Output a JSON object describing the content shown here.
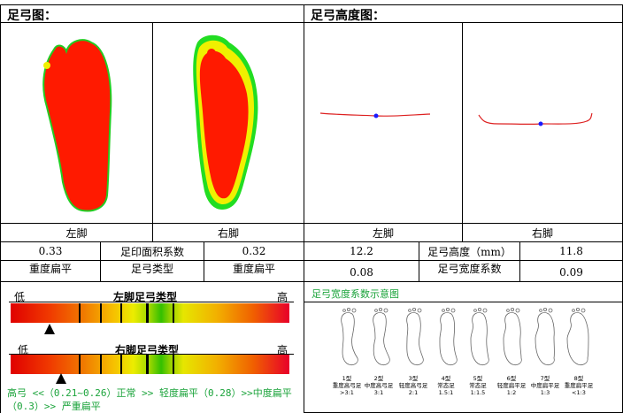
{
  "headers": {
    "arch_map": "足弓图：",
    "arch_height_map": "足弓高度图："
  },
  "labels": {
    "left_foot": "左脚",
    "right_foot": "右脚"
  },
  "left_table": {
    "row1": [
      "0.33",
      "足印面积系数",
      "0.32"
    ],
    "row2": [
      "重度扁平",
      "足弓类型",
      "重度扁平"
    ]
  },
  "right_table": {
    "row1": [
      "12.2",
      "足弓高度（mm）",
      "11.8"
    ],
    "row2": [
      "0.08",
      "足弓宽度系数",
      "0.09"
    ]
  },
  "bars": {
    "low": "低",
    "high": "高",
    "left_title": "左脚足弓类型",
    "right_title": "右脚足弓类型",
    "left_level": 0.14,
    "right_level": 0.18
  },
  "legend_line1": "高弓 <<（0.21~0.26）正常 >> 轻度扁平（0.28）>>中度扁平",
  "legend_line2": "（0.3）>> 严重扁平",
  "width_diagram": {
    "title": "足弓宽度系数示意图",
    "types": [
      {
        "t": "1型",
        "n": "重度高弓足",
        "r": ">3:1"
      },
      {
        "t": "2型",
        "n": "中度高弓足",
        "r": "3:1"
      },
      {
        "t": "3型",
        "n": "轻度高弓足",
        "r": "2:1"
      },
      {
        "t": "4型",
        "n": "常态足",
        "r": "1.5:1"
      },
      {
        "t": "5型",
        "n": "常态足",
        "r": "1:1.5"
      },
      {
        "t": "6型",
        "n": "轻度扁平足",
        "r": "1:2"
      },
      {
        "t": "7型",
        "n": "中度扁平足",
        "r": "1:3"
      },
      {
        "t": "8型",
        "n": "重度扁平足",
        "r": "<1:3"
      }
    ]
  },
  "colors": {
    "heat_red": "#ff1a00",
    "heat_green": "#22dd22",
    "heat_yellow": "#f0f000",
    "curve": "#dd2020",
    "curve_point": "#1a1aff",
    "legend_green": "#1aa33a"
  }
}
